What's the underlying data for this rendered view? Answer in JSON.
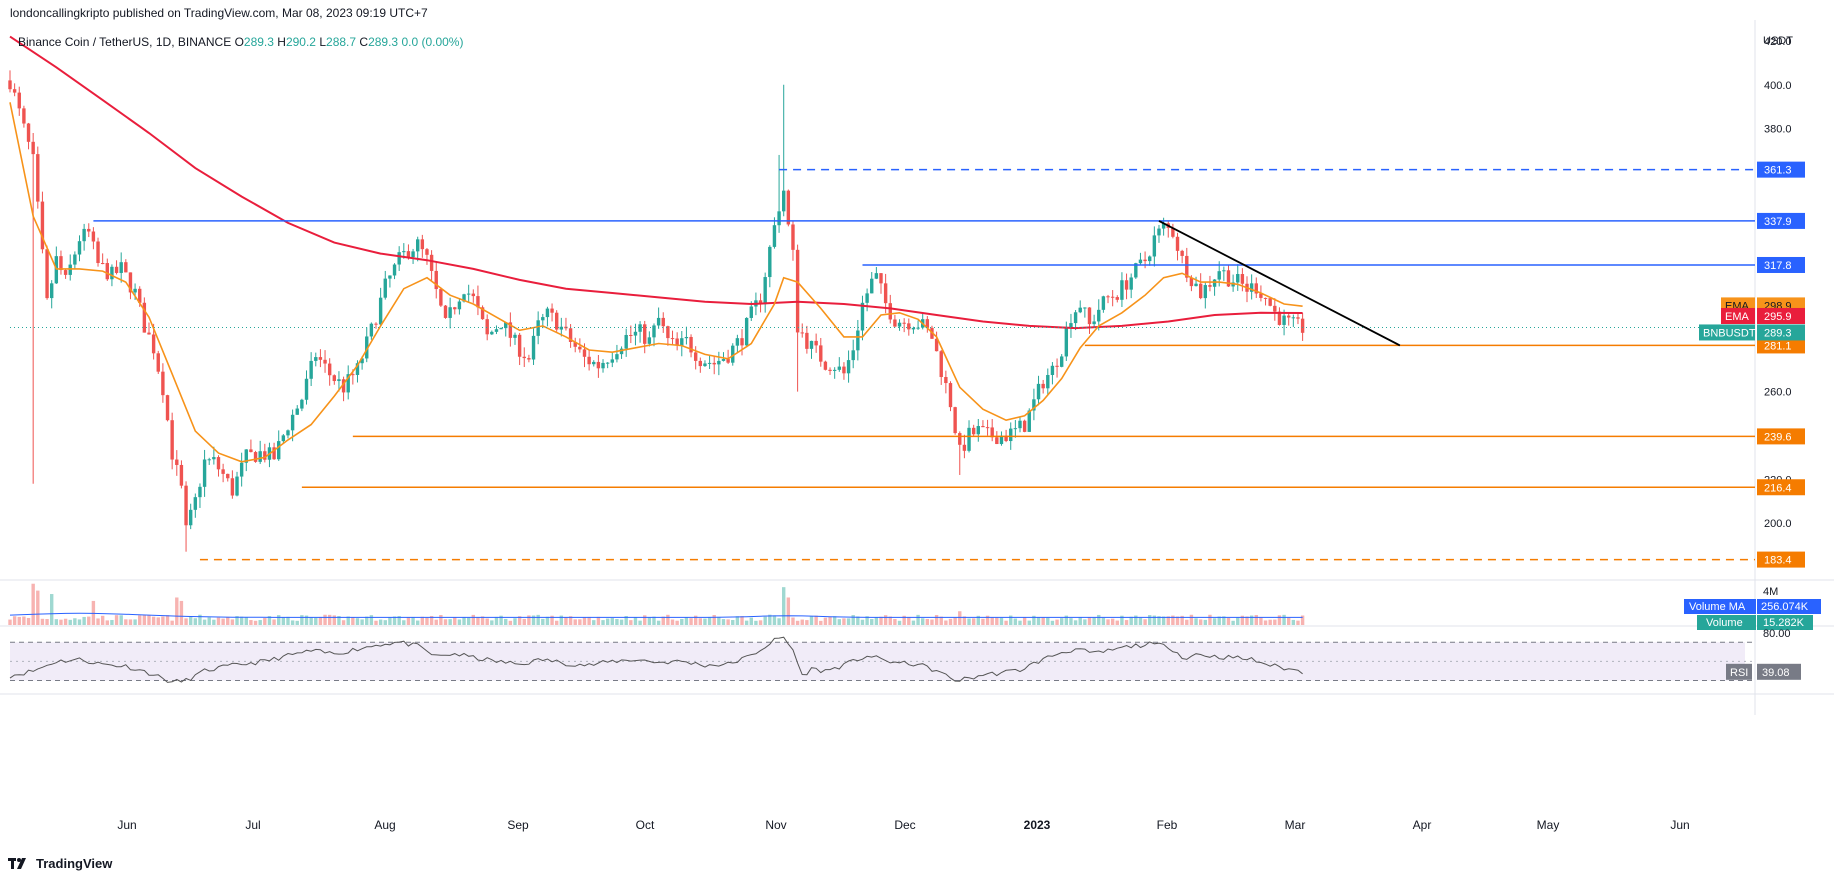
{
  "header": {
    "published": "londoncallingkripto published on TradingView.com, Mar 08, 2023 09:19 UTC+7"
  },
  "legend": {
    "symbol": "Binance Coin / TetherUS, 1D, BINANCE",
    "o_label": "O",
    "o": "289.3",
    "h_label": "H",
    "h": "290.2",
    "l_label": "L",
    "l": "288.7",
    "c_label": "C",
    "c": "289.3",
    "change": "0.0 (0.00%)"
  },
  "footer": {
    "brand": "TradingView"
  },
  "colors": {
    "up": "#26a69a",
    "down": "#ef5350",
    "ema_fast": "#f7931a",
    "ema_slow": "#e91e3c",
    "blue": "#2962ff",
    "orange": "#f57c00",
    "trend": "#000000",
    "vol_ma": "#2962ff",
    "rsi_line": "#555555",
    "rsi_band": "#9575cd"
  },
  "chart_data": {
    "type": "candlestick",
    "y_axis_unit": "USDT",
    "ylim": [
      175,
      425
    ],
    "y_ticks": [
      "420.0",
      "400.0",
      "380.0",
      "260.0",
      "220.0",
      "200.0"
    ],
    "x_ticks": [
      "Jun",
      "Jul",
      "Aug",
      "Sep",
      "Oct",
      "Nov",
      "Dec",
      "2023",
      "Feb",
      "Mar",
      "Apr",
      "May",
      "Jun"
    ],
    "anchors": [
      [
        0,
        402
      ],
      [
        5,
        365
      ],
      [
        8,
        300
      ],
      [
        10,
        320
      ],
      [
        12,
        310
      ],
      [
        15,
        330
      ],
      [
        17,
        332
      ],
      [
        19,
        318
      ],
      [
        22,
        313
      ],
      [
        24,
        316
      ],
      [
        27,
        305
      ],
      [
        29,
        290
      ],
      [
        31,
        280
      ],
      [
        33,
        262
      ],
      [
        35,
        232
      ],
      [
        37,
        215
      ],
      [
        38,
        196
      ],
      [
        40,
        210
      ],
      [
        42,
        228
      ],
      [
        44,
        228
      ],
      [
        46,
        222
      ],
      [
        48,
        215
      ],
      [
        51,
        230
      ],
      [
        54,
        232
      ],
      [
        57,
        230
      ],
      [
        60,
        245
      ],
      [
        63,
        257
      ],
      [
        66,
        277
      ],
      [
        69,
        268
      ],
      [
        72,
        262
      ],
      [
        75,
        270
      ],
      [
        78,
        288
      ],
      [
        81,
        308
      ],
      [
        84,
        320
      ],
      [
        86,
        325
      ],
      [
        88,
        327
      ],
      [
        90,
        320
      ],
      [
        92,
        305
      ],
      [
        94,
        290
      ],
      [
        96,
        300
      ],
      [
        98,
        308
      ],
      [
        100,
        302
      ],
      [
        103,
        285
      ],
      [
        106,
        292
      ],
      [
        109,
        282
      ],
      [
        112,
        275
      ],
      [
        114,
        290
      ],
      [
        116,
        295
      ],
      [
        118,
        292
      ],
      [
        121,
        283
      ],
      [
        124,
        275
      ],
      [
        127,
        272
      ],
      [
        130,
        278
      ],
      [
        133,
        285
      ],
      [
        136,
        287
      ],
      [
        138,
        283
      ],
      [
        140,
        293
      ],
      [
        142,
        283
      ],
      [
        144,
        280
      ],
      [
        146,
        283
      ],
      [
        149,
        275
      ],
      [
        152,
        273
      ],
      [
        155,
        277
      ],
      [
        158,
        285
      ],
      [
        160,
        295
      ],
      [
        162,
        303
      ],
      [
        164,
        325
      ],
      [
        166,
        345
      ],
      [
        167,
        352
      ],
      [
        168,
        335
      ],
      [
        169,
        322
      ],
      [
        170,
        290
      ],
      [
        172,
        283
      ],
      [
        174,
        278
      ],
      [
        176,
        273
      ],
      [
        178,
        272
      ],
      [
        180,
        268
      ],
      [
        182,
        280
      ],
      [
        184,
        300
      ],
      [
        186,
        310
      ],
      [
        187,
        312
      ],
      [
        189,
        300
      ],
      [
        191,
        293
      ],
      [
        193,
        292
      ],
      [
        195,
        292
      ],
      [
        197,
        290
      ],
      [
        199,
        285
      ],
      [
        201,
        270
      ],
      [
        203,
        255
      ],
      [
        205,
        232
      ],
      [
        207,
        240
      ],
      [
        209,
        242
      ],
      [
        211,
        240
      ],
      [
        213,
        240
      ],
      [
        215,
        240
      ],
      [
        217,
        242
      ],
      [
        219,
        245
      ],
      [
        221,
        255
      ],
      [
        223,
        265
      ],
      [
        225,
        270
      ],
      [
        227,
        280
      ],
      [
        229,
        295
      ],
      [
        231,
        300
      ],
      [
        233,
        290
      ],
      [
        235,
        298
      ],
      [
        237,
        303
      ],
      [
        239,
        305
      ],
      [
        241,
        310
      ],
      [
        243,
        315
      ],
      [
        245,
        320
      ],
      [
        247,
        330
      ],
      [
        249,
        335
      ],
      [
        251,
        333
      ],
      [
        253,
        320
      ],
      [
        255,
        312
      ],
      [
        257,
        305
      ],
      [
        259,
        310
      ],
      [
        261,
        316
      ],
      [
        263,
        312
      ],
      [
        265,
        310
      ],
      [
        267,
        307
      ],
      [
        269,
        308
      ],
      [
        271,
        303
      ],
      [
        273,
        296
      ],
      [
        275,
        292
      ],
      [
        277,
        290
      ],
      [
        279,
        289
      ]
    ],
    "ema_fast": [
      [
        0,
        392
      ],
      [
        5,
        340
      ],
      [
        10,
        316
      ],
      [
        15,
        316
      ],
      [
        20,
        315
      ],
      [
        25,
        310
      ],
      [
        30,
        294
      ],
      [
        35,
        268
      ],
      [
        40,
        242
      ],
      [
        45,
        232
      ],
      [
        50,
        228
      ],
      [
        55,
        230
      ],
      [
        60,
        238
      ],
      [
        65,
        245
      ],
      [
        70,
        258
      ],
      [
        75,
        272
      ],
      [
        80,
        290
      ],
      [
        85,
        307
      ],
      [
        90,
        312
      ],
      [
        95,
        304
      ],
      [
        100,
        300
      ],
      [
        105,
        294
      ],
      [
        110,
        288
      ],
      [
        115,
        290
      ],
      [
        120,
        285
      ],
      [
        125,
        279
      ],
      [
        130,
        278
      ],
      [
        135,
        280
      ],
      [
        140,
        282
      ],
      [
        145,
        281
      ],
      [
        150,
        277
      ],
      [
        155,
        275
      ],
      [
        160,
        282
      ],
      [
        165,
        300
      ],
      [
        167,
        312
      ],
      [
        170,
        310
      ],
      [
        175,
        298
      ],
      [
        180,
        285
      ],
      [
        184,
        285
      ],
      [
        188,
        295
      ],
      [
        192,
        296
      ],
      [
        196,
        293
      ],
      [
        200,
        285
      ],
      [
        205,
        262
      ],
      [
        210,
        252
      ],
      [
        215,
        247
      ],
      [
        219,
        249
      ],
      [
        223,
        256
      ],
      [
        227,
        266
      ],
      [
        231,
        280
      ],
      [
        235,
        290
      ],
      [
        240,
        296
      ],
      [
        245,
        304
      ],
      [
        249,
        312
      ],
      [
        253,
        314
      ],
      [
        257,
        310
      ],
      [
        261,
        310
      ],
      [
        265,
        309
      ],
      [
        270,
        305
      ],
      [
        275,
        300
      ],
      [
        279,
        299
      ]
    ],
    "ema_slow": [
      [
        0,
        422
      ],
      [
        10,
        408
      ],
      [
        20,
        393
      ],
      [
        30,
        378
      ],
      [
        40,
        362
      ],
      [
        50,
        349
      ],
      [
        60,
        337
      ],
      [
        70,
        328
      ],
      [
        80,
        323
      ],
      [
        90,
        320
      ],
      [
        100,
        316
      ],
      [
        110,
        311
      ],
      [
        120,
        307
      ],
      [
        130,
        305
      ],
      [
        140,
        303
      ],
      [
        150,
        301
      ],
      [
        160,
        300
      ],
      [
        170,
        301
      ],
      [
        180,
        300
      ],
      [
        190,
        298
      ],
      [
        200,
        295
      ],
      [
        210,
        292
      ],
      [
        220,
        290
      ],
      [
        230,
        289
      ],
      [
        240,
        290
      ],
      [
        250,
        292
      ],
      [
        260,
        295
      ],
      [
        270,
        296
      ],
      [
        279,
        295.9
      ]
    ],
    "levels": [
      {
        "value": 361.3,
        "label": "361.3",
        "color": "#2962ff",
        "dashed": true,
        "x_from": 166
      },
      {
        "value": 337.9,
        "label": "337.9",
        "color": "#2962ff",
        "dashed": false,
        "x_from": 18
      },
      {
        "value": 317.8,
        "label": "317.8",
        "color": "#2962ff",
        "dashed": false,
        "x_from": 184
      },
      {
        "value": 281.1,
        "label": "281.1",
        "color": "#f57c00",
        "dashed": false,
        "x_from": 232
      },
      {
        "value": 239.6,
        "label": "239.6",
        "color": "#f57c00",
        "dashed": false,
        "x_from": 74
      },
      {
        "value": 216.4,
        "label": "216.4",
        "color": "#f57c00",
        "dashed": false,
        "x_from": 63
      },
      {
        "value": 183.4,
        "label": "183.4",
        "color": "#f57c00",
        "dashed": true,
        "x_from": 41
      }
    ],
    "trendline": {
      "from": [
        248,
        337.9
      ],
      "to": [
        300,
        281.1
      ]
    },
    "price_tags": [
      {
        "name": "EMA",
        "value": "298.9",
        "y": 298.9,
        "color": "#f7931a"
      },
      {
        "name": "EMA",
        "value": "295.9",
        "y": 295.9,
        "color": "#e91e3c"
      },
      {
        "name": "BNBUSDT",
        "value": "289.3",
        "y": 289.3,
        "color": "#26a69a"
      }
    ],
    "volume": {
      "axis_label": "4M",
      "ma_label": "Volume MA",
      "ma_value": "256.074K",
      "vol_label": "Volume",
      "vol_value": "15.282K",
      "spikes": [
        [
          5,
          1.2
        ],
        [
          6,
          1.0
        ],
        [
          9,
          0.9
        ],
        [
          18,
          0.7
        ],
        [
          36,
          0.8
        ],
        [
          37,
          0.7
        ],
        [
          167,
          1.1
        ],
        [
          168,
          0.8
        ],
        [
          205,
          0.4
        ]
      ]
    },
    "rsi": {
      "label": "RSI",
      "value": "39.08",
      "tick": "80.00",
      "upper": 70,
      "lower": 30,
      "ylim": [
        20,
        85
      ],
      "points": [
        [
          0,
          35
        ],
        [
          5,
          40
        ],
        [
          10,
          50
        ],
        [
          15,
          52
        ],
        [
          20,
          47
        ],
        [
          25,
          45
        ],
        [
          30,
          38
        ],
        [
          35,
          28
        ],
        [
          38,
          30
        ],
        [
          42,
          40
        ],
        [
          46,
          44
        ],
        [
          50,
          47
        ],
        [
          55,
          50
        ],
        [
          60,
          56
        ],
        [
          65,
          61
        ],
        [
          70,
          58
        ],
        [
          75,
          63
        ],
        [
          80,
          68
        ],
        [
          84,
          70
        ],
        [
          88,
          66
        ],
        [
          92,
          55
        ],
        [
          96,
          58
        ],
        [
          100,
          54
        ],
        [
          105,
          50
        ],
        [
          110,
          47
        ],
        [
          115,
          52
        ],
        [
          120,
          48
        ],
        [
          125,
          46
        ],
        [
          130,
          50
        ],
        [
          135,
          52
        ],
        [
          140,
          49
        ],
        [
          145,
          50
        ],
        [
          150,
          46
        ],
        [
          155,
          47
        ],
        [
          160,
          56
        ],
        [
          165,
          72
        ],
        [
          167,
          75
        ],
        [
          169,
          62
        ],
        [
          171,
          35
        ],
        [
          173,
          42
        ],
        [
          176,
          40
        ],
        [
          180,
          46
        ],
        [
          185,
          56
        ],
        [
          188,
          52
        ],
        [
          192,
          48
        ],
        [
          196,
          47
        ],
        [
          200,
          40
        ],
        [
          204,
          30
        ],
        [
          207,
          32
        ],
        [
          210,
          36
        ],
        [
          214,
          38
        ],
        [
          218,
          41
        ],
        [
          222,
          50
        ],
        [
          226,
          58
        ],
        [
          230,
          63
        ],
        [
          234,
          58
        ],
        [
          238,
          62
        ],
        [
          242,
          66
        ],
        [
          246,
          68
        ],
        [
          250,
          66
        ],
        [
          254,
          52
        ],
        [
          256,
          58
        ],
        [
          260,
          55
        ],
        [
          264,
          54
        ],
        [
          268,
          52
        ],
        [
          272,
          46
        ],
        [
          276,
          42
        ],
        [
          279,
          39
        ]
      ]
    }
  }
}
